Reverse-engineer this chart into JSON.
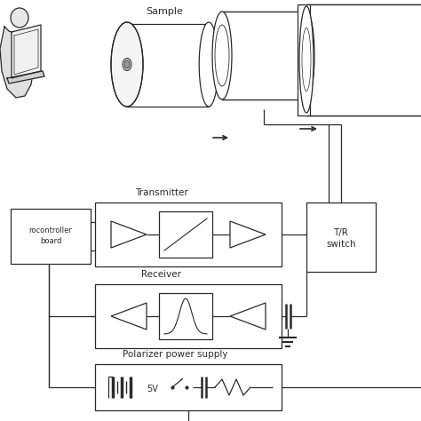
{
  "bg_color": "#ffffff",
  "lc": "#2a2a2a",
  "lc_light": "#555555",
  "labels": {
    "sample": "Sample",
    "transmitter": "Transmitter",
    "receiver": "Receiver",
    "microcontroller": "rocontroller\nboard",
    "tr_switch": "T/R\nswitch",
    "polarizer": "Polarizer power supply",
    "voltage": "5V"
  },
  "figsize": [
    4.74,
    4.74
  ],
  "dpi": 100
}
